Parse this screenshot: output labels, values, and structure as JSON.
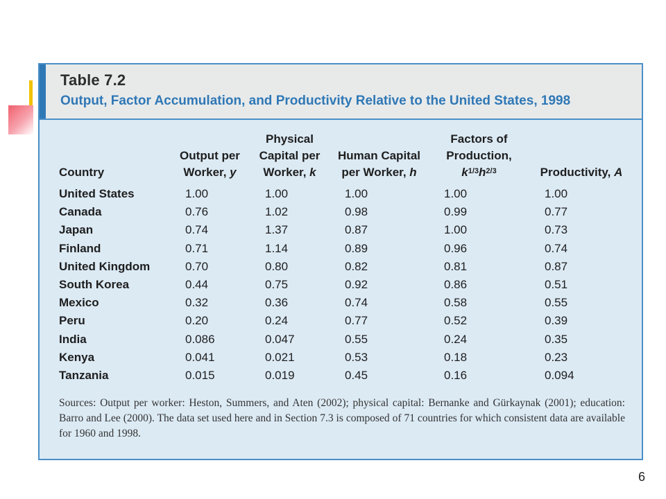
{
  "table": {
    "label": "Table 7.2",
    "title": "Output, Factor Accumulation, and Productivity Relative to the United States, 1998",
    "headers": {
      "country": "Country",
      "output": {
        "line1": "Output per",
        "line2": "Worker, ",
        "symbol": "y"
      },
      "capital": {
        "line1": "Physical",
        "line2": "Capital per",
        "line3": "Worker, ",
        "symbol": "k"
      },
      "human": {
        "line1": "Human Capital",
        "line2": "per Worker, ",
        "symbol": "h"
      },
      "factors": {
        "line1": "Factors of",
        "line2": "Production,",
        "k": "k",
        "k_exp": "1/3",
        "h": "h",
        "h_exp": "2/3"
      },
      "productivity": {
        "line1": "Productivity, ",
        "symbol": "A"
      }
    },
    "rows": [
      {
        "country": "United States",
        "y": "1.00",
        "k": "1.00",
        "h": "1.00",
        "factors": "1.00",
        "A": "1.00"
      },
      {
        "country": "Canada",
        "y": "0.76",
        "k": "1.02",
        "h": "0.98",
        "factors": "0.99",
        "A": "0.77"
      },
      {
        "country": "Japan",
        "y": "0.74",
        "k": "1.37",
        "h": "0.87",
        "factors": "1.00",
        "A": "0.73"
      },
      {
        "country": "Finland",
        "y": "0.71",
        "k": "1.14",
        "h": "0.89",
        "factors": "0.96",
        "A": "0.74"
      },
      {
        "country": "United Kingdom",
        "y": "0.70",
        "k": "0.80",
        "h": "0.82",
        "factors": "0.81",
        "A": "0.87"
      },
      {
        "country": "South Korea",
        "y": "0.44",
        "k": "0.75",
        "h": "0.92",
        "factors": "0.86",
        "A": "0.51"
      },
      {
        "country": "Mexico",
        "y": "0.32",
        "k": "0.36",
        "h": "0.74",
        "factors": "0.58",
        "A": "0.55"
      },
      {
        "country": "Peru",
        "y": "0.20",
        "k": "0.24",
        "h": "0.77",
        "factors": "0.52",
        "A": "0.39"
      },
      {
        "country": "India",
        "y": "0.086",
        "k": "0.047",
        "h": "0.55",
        "factors": "0.24",
        "A": "0.35"
      },
      {
        "country": "Kenya",
        "y": "0.041",
        "k": "0.021",
        "h": "0.53",
        "factors": "0.18",
        "A": "0.23"
      },
      {
        "country": "Tanzania",
        "y": "0.015",
        "k": "0.019",
        "h": "0.45",
        "factors": "0.16",
        "A": "0.094"
      }
    ],
    "sources": "Sources: Output per worker: Heston, Summers, and Aten (2002); physical capital: Bernanke and Gürkaynak (2001); education: Barro and Lee (2000). The data set used here and in Section 7.3 is composed of 71 countries for which consistent data are available for 1960 and 1998."
  },
  "slide": {
    "page_number": "6"
  },
  "colors": {
    "accent_blue": "#2f78b6",
    "table_background": "#dceaf4",
    "header_background": "#e8eaea"
  }
}
